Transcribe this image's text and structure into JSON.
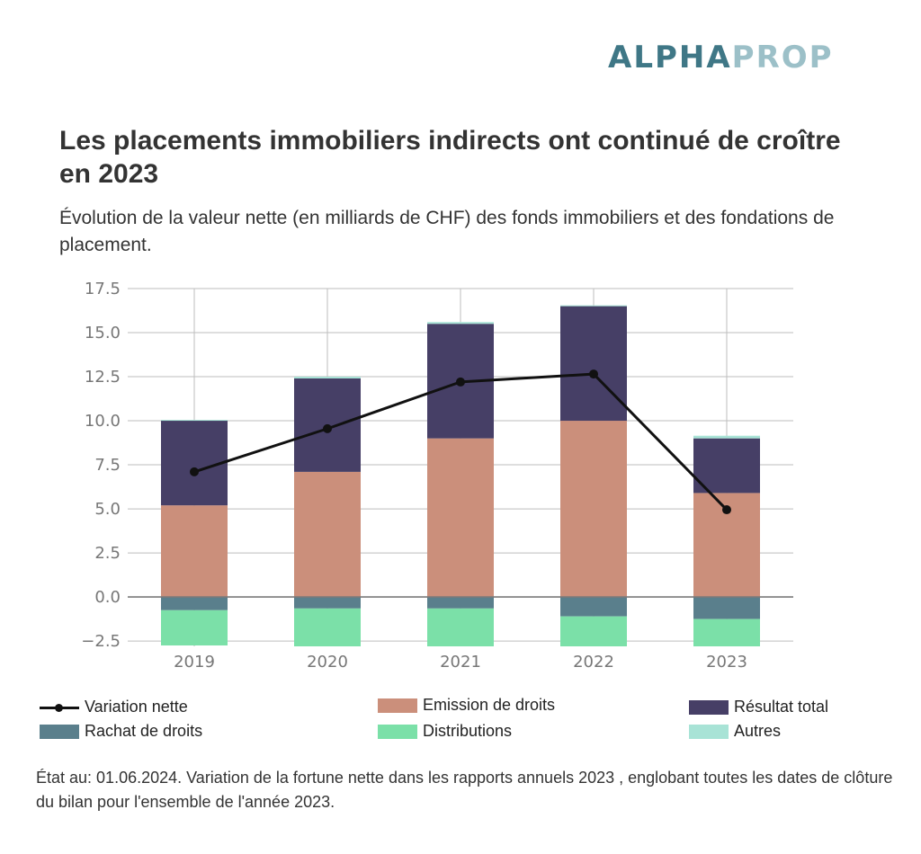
{
  "logo": {
    "part1": "ALPHA",
    "part2": "PROP"
  },
  "title": "Les placements immobiliers indirects ont continué de croître en 2023",
  "subtitle": "Évolution de la valeur nette (en milliards de CHF) des fonds immobiliers et des fondations de placement.",
  "footnote": "État au: 01.06.2024. Variation de la fortune nette dans les rapports annuels 2023 , englobant toutes les dates de clôture du bilan pour l'ensemble de l'année 2023.",
  "legend": {
    "variation": "Variation nette",
    "rachat": "Rachat de droits",
    "emission": "Emission de droits",
    "distributions": "Distributions",
    "resultat": "Résultat total",
    "autres": "Autres"
  },
  "colors": {
    "emission": "#cb8f7b",
    "resultat": "#463f66",
    "autres": "#a8e3d6",
    "rachat": "#5a7f8c",
    "distributions": "#7be0a8",
    "line": "#111111"
  },
  "chart_data": {
    "type": "bar",
    "stacked": true,
    "categories": [
      "2019",
      "2020",
      "2021",
      "2022",
      "2023"
    ],
    "series": [
      {
        "name": "Emission de droits",
        "key": "emission",
        "values": [
          5.2,
          7.1,
          9.0,
          10.0,
          5.9
        ]
      },
      {
        "name": "Résultat total",
        "key": "resultat",
        "values": [
          4.8,
          5.3,
          6.5,
          6.5,
          3.1
        ]
      },
      {
        "name": "Autres",
        "key": "autres",
        "values": [
          0.05,
          0.1,
          0.1,
          0.05,
          0.15
        ]
      },
      {
        "name": "Rachat de droits",
        "key": "rachat",
        "values": [
          -0.75,
          -0.65,
          -0.65,
          -1.1,
          -1.25
        ]
      },
      {
        "name": "Distributions",
        "key": "distributions",
        "values": [
          -2.0,
          -2.15,
          -2.15,
          -1.7,
          -1.55
        ]
      }
    ],
    "line": {
      "name": "Variation nette",
      "values": [
        7.1,
        9.55,
        12.2,
        12.65,
        4.95
      ]
    },
    "ylim": [
      -2.8,
      17.5
    ],
    "yticks": [
      -2.5,
      0.0,
      2.5,
      5.0,
      7.5,
      10.0,
      12.5,
      15.0,
      17.5
    ],
    "ytick_labels": [
      "−2.5",
      "0.0",
      "2.5",
      "5.0",
      "7.5",
      "10.0",
      "12.5",
      "15.0",
      "17.5"
    ],
    "grid": true,
    "legend_position": "bottom"
  }
}
